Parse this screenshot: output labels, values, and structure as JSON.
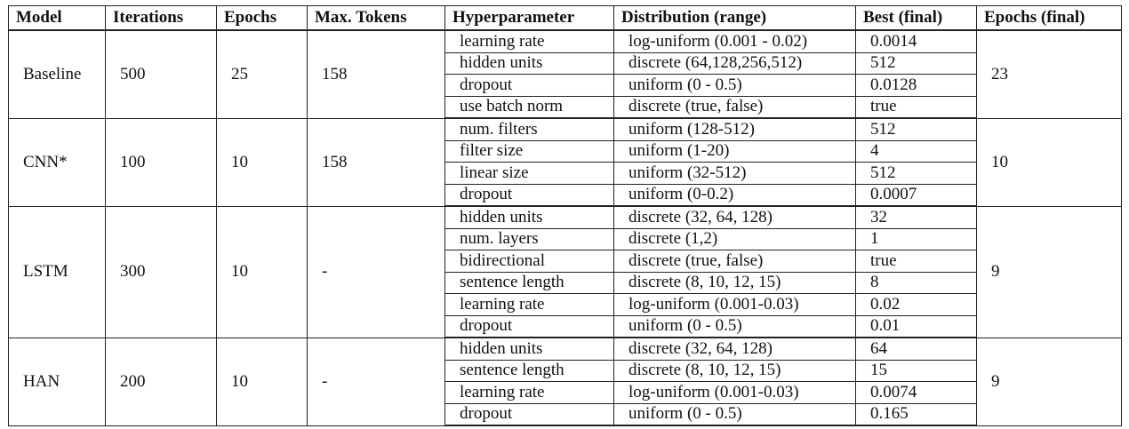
{
  "table": {
    "headers": [
      "Model",
      "Iterations",
      "Epochs",
      "Max. Tokens",
      "Hyperparameter",
      "Distribution (range)",
      "Best (final)",
      "Epochs (final)"
    ],
    "groups": [
      {
        "model": "Baseline",
        "iterations": "500",
        "epochs": "25",
        "max_tokens": "158",
        "epochs_final": "23",
        "rows": [
          {
            "hyperparameter": "learning rate",
            "distribution": "log-uniform (0.001 - 0.02)",
            "best": "0.0014"
          },
          {
            "hyperparameter": "hidden units",
            "distribution": "discrete (64,128,256,512)",
            "best": "512"
          },
          {
            "hyperparameter": "dropout",
            "distribution": "uniform (0 - 0.5)",
            "best": "0.0128"
          },
          {
            "hyperparameter": "use batch norm",
            "distribution": "discrete (true, false)",
            "best": "true"
          }
        ]
      },
      {
        "model": "CNN*",
        "iterations": "100",
        "epochs": "10",
        "max_tokens": "158",
        "epochs_final": "10",
        "rows": [
          {
            "hyperparameter": "num. filters",
            "distribution": "uniform (128-512)",
            "best": "512"
          },
          {
            "hyperparameter": "filter size",
            "distribution": "uniform (1-20)",
            "best": "4"
          },
          {
            "hyperparameter": "linear size",
            "distribution": "uniform (32-512)",
            "best": "512"
          },
          {
            "hyperparameter": "dropout",
            "distribution": "uniform (0-0.2)",
            "best": "0.0007"
          }
        ]
      },
      {
        "model": "LSTM",
        "iterations": "300",
        "epochs": "10",
        "max_tokens": "-",
        "epochs_final": "9",
        "rows": [
          {
            "hyperparameter": "hidden units",
            "distribution": "discrete (32, 64, 128)",
            "best": "32"
          },
          {
            "hyperparameter": "num. layers",
            "distribution": "discrete (1,2)",
            "best": "1"
          },
          {
            "hyperparameter": "bidirectional",
            "distribution": "discrete (true, false)",
            "best": "true"
          },
          {
            "hyperparameter": "sentence length",
            "distribution": "discrete (8, 10, 12, 15)",
            "best": "8"
          },
          {
            "hyperparameter": "learning rate",
            "distribution": "log-uniform (0.001-0.03)",
            "best": "0.02"
          },
          {
            "hyperparameter": "dropout",
            "distribution": "uniform (0 - 0.5)",
            "best": "0.01"
          }
        ]
      },
      {
        "model": "HAN",
        "iterations": "200",
        "epochs": "10",
        "max_tokens": "-",
        "epochs_final": "9",
        "rows": [
          {
            "hyperparameter": "hidden units",
            "distribution": "discrete (32, 64, 128)",
            "best": "64"
          },
          {
            "hyperparameter": "sentence length",
            "distribution": "discrete (8, 10, 12, 15)",
            "best": "15"
          },
          {
            "hyperparameter": "learning rate",
            "distribution": "log-uniform (0.001-0.03)",
            "best": "0.0074"
          },
          {
            "hyperparameter": "dropout",
            "distribution": "uniform (0 - 0.5)",
            "best": "0.165"
          }
        ]
      }
    ]
  }
}
